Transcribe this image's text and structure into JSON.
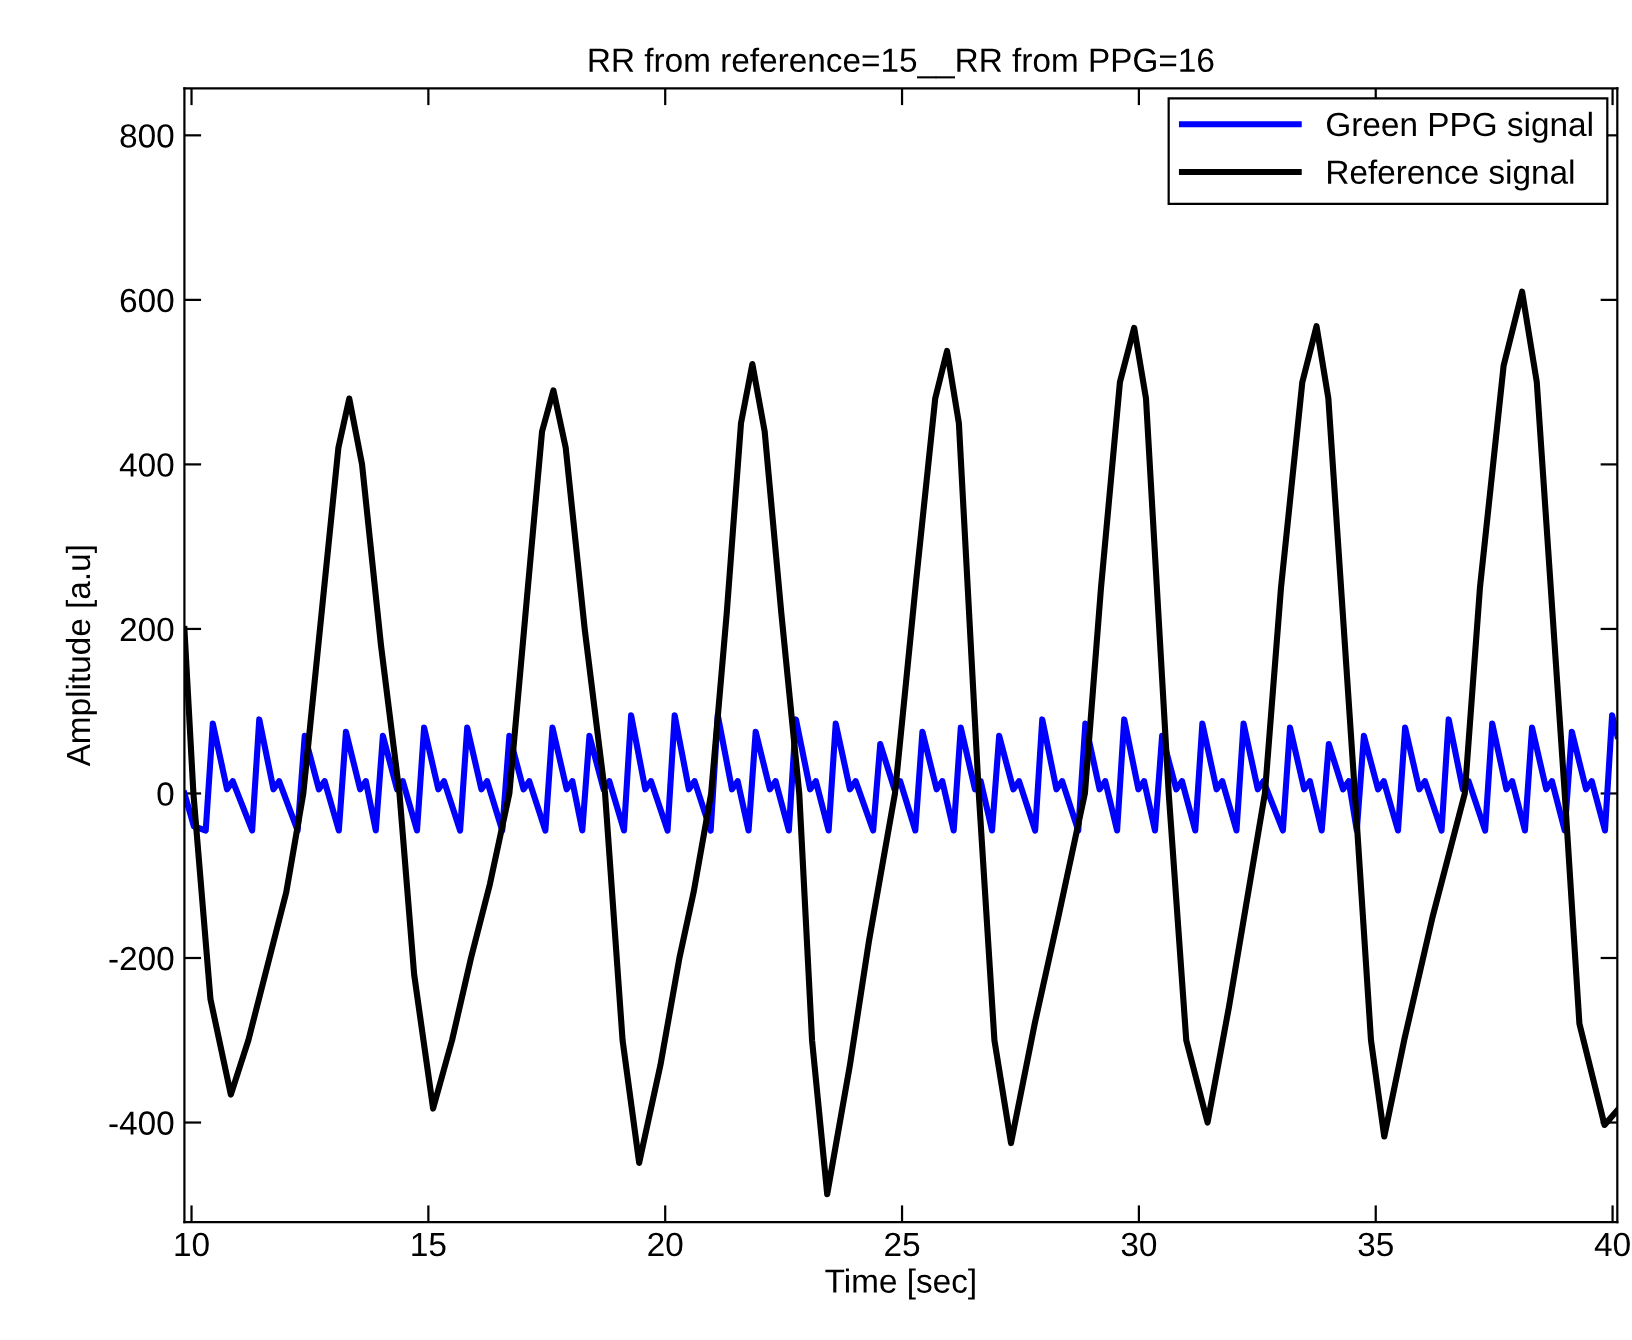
{
  "chart_data": {
    "type": "line",
    "title": "RR from reference=15__RR from PPG=16",
    "xlabel": "Time [sec]",
    "ylabel": "Amplitude [a.u]",
    "xlim": [
      9.85,
      40.1
    ],
    "ylim": [
      -521,
      857
    ],
    "xticks": [
      10,
      15,
      20,
      25,
      30,
      35,
      40
    ],
    "yticks": [
      -400,
      -200,
      0,
      200,
      400,
      600,
      800
    ],
    "grid": false,
    "legend": "top right",
    "line_style": "solid",
    "marker": "none",
    "series": [
      {
        "name": "Green PPG signal",
        "color": "#0000ff",
        "x": [
          9.85,
          10.05,
          10.3,
          10.45,
          10.75,
          10.87,
          11.28,
          11.43,
          11.73,
          11.85,
          12.24,
          12.39,
          12.69,
          12.81,
          13.11,
          13.26,
          13.56,
          13.68,
          13.89,
          14.04,
          14.34,
          14.46,
          14.76,
          14.91,
          15.21,
          15.33,
          15.67,
          15.82,
          16.12,
          16.24,
          16.56,
          16.71,
          17.01,
          17.13,
          17.47,
          17.62,
          17.92,
          18.04,
          18.25,
          18.4,
          18.7,
          18.82,
          19.13,
          19.28,
          19.58,
          19.7,
          20.05,
          20.2,
          20.5,
          20.62,
          20.96,
          21.11,
          21.41,
          21.53,
          21.76,
          21.91,
          22.21,
          22.33,
          22.61,
          22.76,
          23.06,
          23.18,
          23.45,
          23.6,
          23.9,
          24.02,
          24.39,
          24.54,
          24.84,
          24.96,
          25.28,
          25.43,
          25.73,
          25.85,
          26.09,
          26.24,
          26.54,
          26.66,
          26.9,
          27.05,
          27.35,
          27.47,
          27.81,
          27.96,
          28.26,
          28.38,
          28.72,
          28.87,
          29.17,
          29.29,
          29.54,
          29.69,
          29.99,
          30.11,
          30.34,
          30.49,
          30.79,
          30.91,
          31.19,
          31.34,
          31.64,
          31.76,
          32.06,
          32.21,
          32.51,
          32.63,
          33.04,
          33.19,
          33.49,
          33.61,
          33.86,
          34.01,
          34.31,
          34.43,
          34.6,
          34.75,
          35.05,
          35.17,
          35.47,
          35.62,
          35.92,
          36.04,
          36.39,
          36.54,
          36.84,
          36.96,
          37.31,
          37.46,
          37.76,
          37.88,
          38.15,
          38.3,
          38.6,
          38.72,
          38.99,
          39.14,
          39.44,
          39.56,
          39.84,
          39.99,
          40.1
        ],
        "values": [
          0,
          -40,
          -45,
          85,
          5,
          15,
          -45,
          90,
          5,
          15,
          -45,
          70,
          5,
          15,
          -45,
          75,
          5,
          15,
          -45,
          70,
          5,
          15,
          -45,
          80,
          5,
          15,
          -45,
          80,
          5,
          15,
          -45,
          70,
          5,
          15,
          -45,
          80,
          5,
          15,
          -45,
          70,
          5,
          15,
          -45,
          95,
          5,
          15,
          -45,
          95,
          5,
          15,
          -45,
          95,
          5,
          15,
          -45,
          75,
          5,
          15,
          -45,
          90,
          5,
          15,
          -45,
          85,
          5,
          15,
          -45,
          60,
          5,
          15,
          -45,
          75,
          5,
          15,
          -45,
          80,
          5,
          15,
          -45,
          70,
          5,
          15,
          -45,
          90,
          5,
          15,
          -45,
          85,
          5,
          15,
          -45,
          90,
          5,
          15,
          -45,
          70,
          5,
          15,
          -45,
          85,
          5,
          15,
          -45,
          85,
          5,
          15,
          -45,
          80,
          5,
          15,
          -45,
          60,
          5,
          15,
          -45,
          70,
          5,
          15,
          -45,
          80,
          5,
          15,
          -45,
          90,
          5,
          15,
          -45,
          85,
          5,
          15,
          -45,
          80,
          5,
          15,
          -45,
          75,
          5,
          15,
          -45,
          95,
          70
        ]
      },
      {
        "name": "Reference signal",
        "color": "#000000",
        "x": [
          9.85,
          10.04,
          10.4,
          10.83,
          11.2,
          11.6,
          12.0,
          12.36,
          12.8,
          13.1,
          13.33,
          13.6,
          14.0,
          14.39,
          14.7,
          15.1,
          15.5,
          15.9,
          16.3,
          16.71,
          17.1,
          17.4,
          17.64,
          17.9,
          18.3,
          18.73,
          19.1,
          19.45,
          19.9,
          20.3,
          20.6,
          20.97,
          21.3,
          21.6,
          21.84,
          22.1,
          22.45,
          22.83,
          23.1,
          23.42,
          23.9,
          24.3,
          24.85,
          25.3,
          25.7,
          25.95,
          26.2,
          26.62,
          26.95,
          27.3,
          27.8,
          28.3,
          28.86,
          29.2,
          29.6,
          29.9,
          30.15,
          30.63,
          31.0,
          31.45,
          31.9,
          32.66,
          33.0,
          33.45,
          33.75,
          34.0,
          34.56,
          34.9,
          35.18,
          35.6,
          36.2,
          36.88,
          37.2,
          37.7,
          38.09,
          38.4,
          38.99,
          39.3,
          39.83,
          40.1
        ],
        "values": [
          200,
          0,
          -250,
          -366,
          -300,
          -210,
          -120,
          0,
          250,
          420,
          480,
          400,
          180,
          0,
          -220,
          -383,
          -300,
          -200,
          -110,
          0,
          250,
          440,
          490,
          420,
          200,
          0,
          -300,
          -449,
          -330,
          -200,
          -120,
          0,
          220,
          450,
          522,
          440,
          220,
          0,
          -300,
          -487,
          -330,
          -180,
          0,
          260,
          480,
          538,
          450,
          0,
          -300,
          -425,
          -280,
          -150,
          0,
          250,
          500,
          566,
          480,
          0,
          -300,
          -400,
          -260,
          0,
          250,
          500,
          568,
          480,
          0,
          -300,
          -417,
          -300,
          -150,
          0,
          250,
          520,
          610,
          500,
          0,
          -280,
          -403,
          -385
        ]
      }
    ]
  }
}
